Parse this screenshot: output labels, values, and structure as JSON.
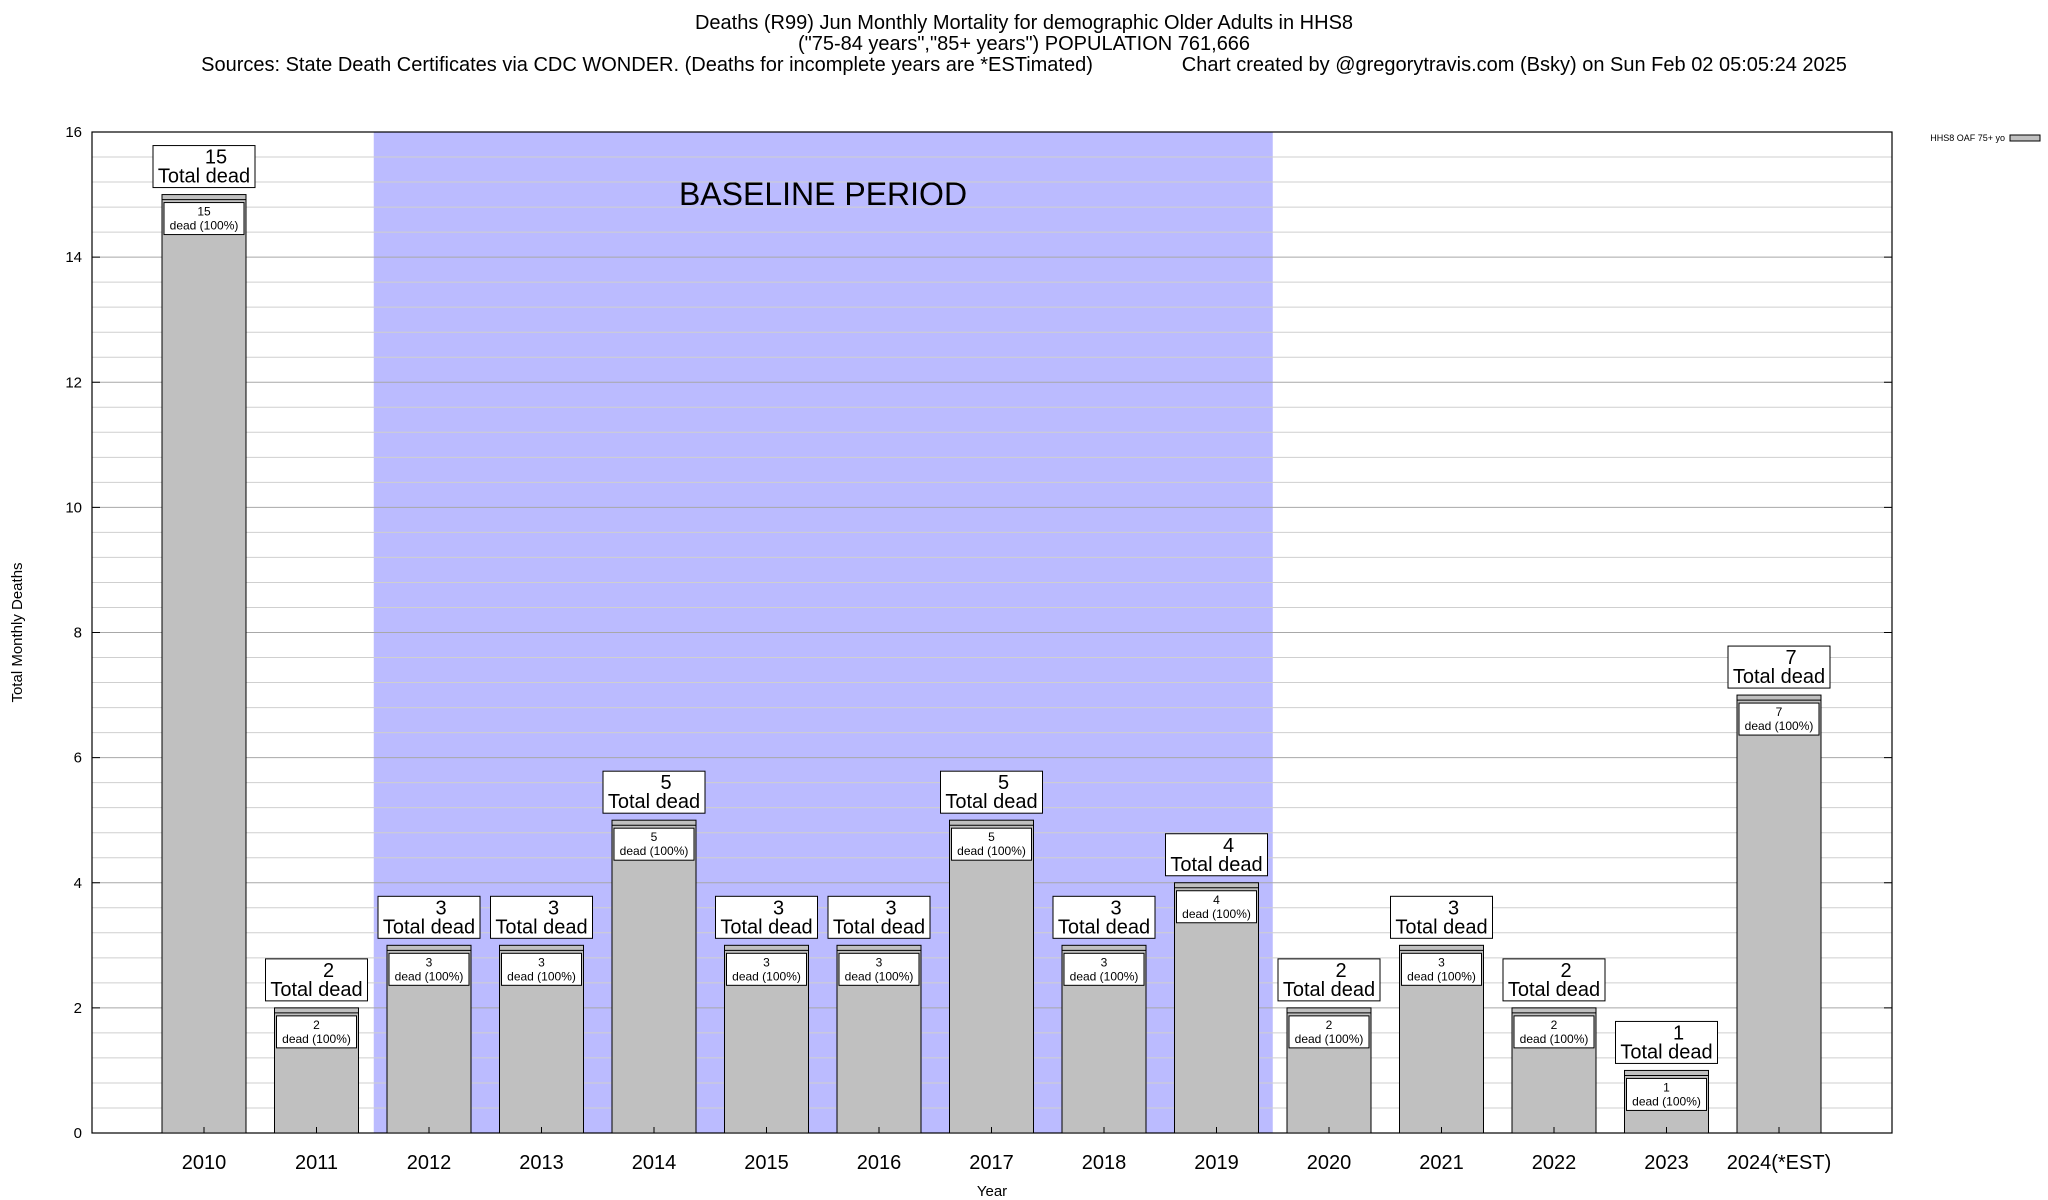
{
  "title": {
    "line1": "Deaths (R99) Jun Monthly Mortality for demographic Older Adults in HHS8",
    "line2": "(\"75-84 years\",\"85+ years\") POPULATION 761,666",
    "line3": "Sources: State Death Certificates via CDC WONDER. (Deaths for incomplete years are *ESTimated)                Chart created by @gregorytravis.com (Bsky) on Sun Feb 02 05:05:24 2025"
  },
  "chart_data": {
    "type": "bar",
    "xlabel": "Year",
    "ylabel": "Total Monthly Deaths",
    "ylim": [
      0,
      16
    ],
    "yticks": [
      0,
      2,
      4,
      6,
      8,
      10,
      12,
      14,
      16
    ],
    "grid": true,
    "legend": {
      "position": "top-right",
      "label": "HHS8 OAF 75+ yo"
    },
    "shaded_region": {
      "label": "BASELINE PERIOD",
      "from": "2012",
      "to": "2019",
      "color": "#bbbbff"
    },
    "bar_color": "#c0c0c0",
    "categories": [
      "2010",
      "2011",
      "2012",
      "2013",
      "2014",
      "2015",
      "2016",
      "2017",
      "2018",
      "2019",
      "2020",
      "2021",
      "2022",
      "2023",
      "2024(*EST)"
    ],
    "values": [
      15,
      2,
      3,
      3,
      5,
      3,
      3,
      5,
      3,
      4,
      2,
      3,
      2,
      1,
      7
    ],
    "top_label_suffix": "Total dead",
    "inner_label_suffix": "dead (100%)"
  }
}
